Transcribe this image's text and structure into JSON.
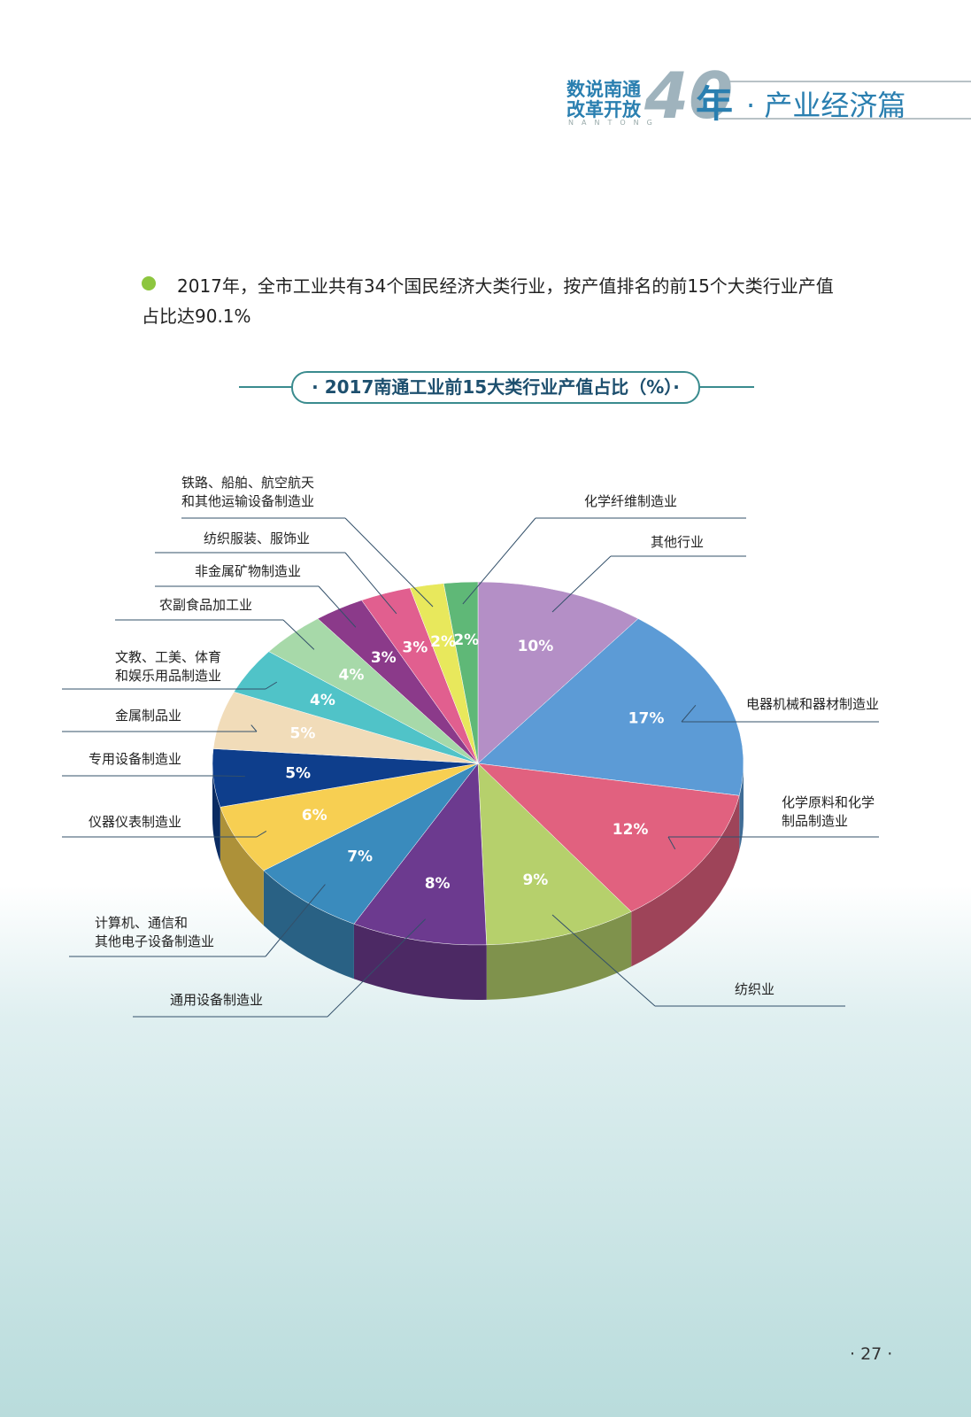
{
  "header": {
    "brand_line1": "数说南通",
    "brand_line2": "改革开放",
    "brand_number": "40",
    "brand_year": "年",
    "brand_sub": "NANTONG",
    "section": "· 产业经济篇"
  },
  "intro": "2017年，全市工业共有34个国民经济大类行业，按产值排名的前15个大类行业产值占比达90.1%",
  "chart_data": {
    "type": "pie",
    "title": "· 2017南通工业前15大类行业产值占比（%）·",
    "categories": [
      "其他行业",
      "电器机械和器材制造业",
      "化学原料和化学\n制品制造业",
      "纺织业",
      "通用设备制造业",
      "计算机、通信和\n其他电子设备制造业",
      "仪器仪表制造业",
      "专用设备制造业",
      "金属制品业",
      "文教、工美、体育\n和娱乐用品制造业",
      "农副食品加工业",
      "非金属矿物制造业",
      "纺织服装、服饰业",
      "铁路、船舶、航空航天\n和其他运输设备制造业",
      "化学纤维制造业"
    ],
    "values": [
      10,
      17,
      12,
      9,
      8,
      7,
      6,
      5,
      5,
      4,
      4,
      3,
      3,
      2,
      2
    ],
    "value_labels": [
      "10%",
      "17%",
      "12%",
      "9%",
      "8%",
      "7%",
      "6%",
      "5%",
      "5%",
      "4%",
      "4%",
      "3%",
      "3%",
      "2%",
      "2%"
    ],
    "colors": [
      "#b48fc6",
      "#5c9bd6",
      "#e1617f",
      "#b6d06c",
      "#6c3a8f",
      "#3a8bbd",
      "#f7cf52",
      "#0e3e8c",
      "#f1dcb9",
      "#50c3c8",
      "#a7d9a9",
      "#8b3a8a",
      "#e15f8f",
      "#e8e85c",
      "#5fb877"
    ]
  },
  "page_number": "· 27 ·"
}
